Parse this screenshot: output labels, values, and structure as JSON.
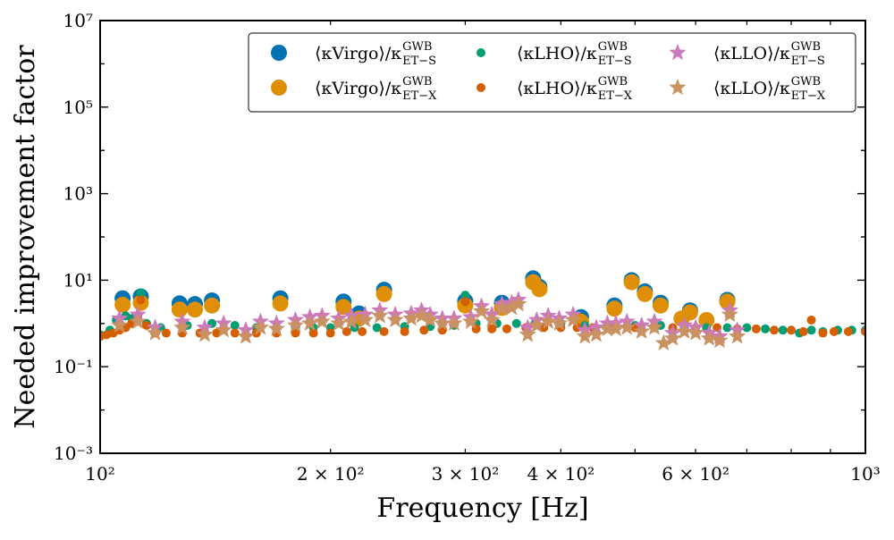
{
  "chart_data": {
    "type": "scatter",
    "xscale": "log",
    "yscale": "log",
    "xlim": [
      100,
      1000
    ],
    "ylim": [
      0.001,
      10000000
    ],
    "xlabel": "Frequency [Hz]",
    "ylabel": "Needed improvement factor",
    "x_ticks": [
      {
        "value": 100,
        "label": "10²",
        "major": true
      },
      {
        "value": 200,
        "label": "2 × 10²",
        "major": false
      },
      {
        "value": 300,
        "label": "3 × 10²",
        "major": false
      },
      {
        "value": 400,
        "label": "4 × 10²",
        "major": false
      },
      {
        "value": 500,
        "label": "",
        "major": false
      },
      {
        "value": 600,
        "label": "6 × 10²",
        "major": false
      },
      {
        "value": 700,
        "label": "",
        "major": false
      },
      {
        "value": 800,
        "label": "",
        "major": false
      },
      {
        "value": 900,
        "label": "",
        "major": false
      },
      {
        "value": 1000,
        "label": "10³",
        "major": true
      }
    ],
    "y_ticks": [
      {
        "value": 0.001,
        "label": "10⁻³"
      },
      {
        "value": 0.1,
        "label": "10⁻¹"
      },
      {
        "value": 10,
        "label": "10¹"
      },
      {
        "value": 1000,
        "label": "10³"
      },
      {
        "value": 100000,
        "label": "10⁵"
      },
      {
        "value": 10000000,
        "label": "10⁷"
      }
    ],
    "legend": {
      "placement": "top-right",
      "columns": 3
    },
    "series": [
      {
        "name": "⟨κ_Virgo⟩/κ^GWB_ET−S",
        "legend_main": "⟨κVirgo⟩/κ",
        "legend_sup": "GWB",
        "legend_sub": "ET−S",
        "color": "#0173b2",
        "marker": "circle",
        "size": "large",
        "points": [
          [
            107,
            3.8
          ],
          [
            113,
            4.2
          ],
          [
            127,
            2.9
          ],
          [
            133,
            2.8
          ],
          [
            140,
            3.4
          ],
          [
            172,
            3.8
          ],
          [
            208,
            3.2
          ],
          [
            218,
            1.7
          ],
          [
            235,
            6.0
          ],
          [
            300,
            3.3
          ],
          [
            335,
            3.0
          ],
          [
            368,
            11.0
          ],
          [
            375,
            7.0
          ],
          [
            425,
            1.4
          ],
          [
            470,
            2.6
          ],
          [
            495,
            10.0
          ],
          [
            515,
            5.5
          ],
          [
            540,
            3.0
          ],
          [
            590,
            2.0
          ],
          [
            660,
            3.5
          ]
        ]
      },
      {
        "name": "⟨κ_Virgo⟩/κ^GWB_ET−X",
        "legend_main": "⟨κVirgo⟩/κ",
        "legend_sup": "GWB",
        "legend_sub": "ET−X",
        "color": "#de8f05",
        "marker": "circle",
        "size": "large",
        "points": [
          [
            107,
            2.7
          ],
          [
            113,
            3.0
          ],
          [
            127,
            2.1
          ],
          [
            133,
            2.1
          ],
          [
            140,
            2.6
          ],
          [
            172,
            2.9
          ],
          [
            208,
            2.4
          ],
          [
            218,
            1.3
          ],
          [
            235,
            4.8
          ],
          [
            300,
            2.6
          ],
          [
            335,
            2.3
          ],
          [
            368,
            9.0
          ],
          [
            375,
            6.2
          ],
          [
            425,
            1.1
          ],
          [
            470,
            2.2
          ],
          [
            495,
            9.0
          ],
          [
            515,
            4.8
          ],
          [
            540,
            2.6
          ],
          [
            575,
            1.3
          ],
          [
            590,
            1.8
          ],
          [
            620,
            1.2
          ],
          [
            660,
            3.2
          ]
        ]
      },
      {
        "name": "⟨κ_LHO⟩/κ^GWB_ET−S",
        "legend_main": "⟨κLHO⟩/κ",
        "legend_sup": "GWB",
        "legend_sub": "ET−S",
        "color": "#029e73",
        "marker": "circle",
        "size": "small",
        "points": [
          [
            100,
            0.55
          ],
          [
            103,
            0.7
          ],
          [
            105,
            1.2
          ],
          [
            108,
            1.5
          ],
          [
            110,
            1.3
          ],
          [
            113,
            5.0
          ],
          [
            115,
            1.0
          ],
          [
            120,
            0.8
          ],
          [
            130,
            0.9
          ],
          [
            140,
            1.0
          ],
          [
            150,
            0.9
          ],
          [
            160,
            0.8
          ],
          [
            170,
            0.8
          ],
          [
            180,
            0.8
          ],
          [
            190,
            0.8
          ],
          [
            200,
            0.8
          ],
          [
            215,
            0.8
          ],
          [
            230,
            0.8
          ],
          [
            250,
            0.85
          ],
          [
            270,
            0.85
          ],
          [
            290,
            0.9
          ],
          [
            300,
            4.5
          ],
          [
            310,
            1.0
          ],
          [
            330,
            1.0
          ],
          [
            350,
            1.0
          ],
          [
            370,
            1.0
          ],
          [
            400,
            1.0
          ],
          [
            430,
            0.9
          ],
          [
            460,
            0.9
          ],
          [
            500,
            0.9
          ],
          [
            540,
            0.9
          ],
          [
            580,
            0.8
          ],
          [
            620,
            0.8
          ],
          [
            660,
            0.8
          ],
          [
            700,
            0.8
          ],
          [
            740,
            0.75
          ],
          [
            780,
            0.7
          ],
          [
            820,
            0.6
          ],
          [
            850,
            0.7
          ],
          [
            880,
            0.65
          ],
          [
            920,
            0.7
          ],
          [
            960,
            0.7
          ],
          [
            1000,
            0.7
          ]
        ]
      },
      {
        "name": "⟨κ_LHO⟩/κ^GWB_ET−X",
        "legend_main": "⟨κLHO⟩/κ",
        "legend_sup": "GWB",
        "legend_sub": "ET−X",
        "color": "#d55e00",
        "marker": "circle",
        "size": "small",
        "points": [
          [
            100,
            0.5
          ],
          [
            102,
            0.55
          ],
          [
            104,
            0.6
          ],
          [
            106,
            0.7
          ],
          [
            108,
            0.8
          ],
          [
            110,
            1.0
          ],
          [
            112,
            1.4
          ],
          [
            113,
            3.5
          ],
          [
            115,
            0.9
          ],
          [
            118,
            0.6
          ],
          [
            122,
            0.6
          ],
          [
            128,
            0.6
          ],
          [
            135,
            0.6
          ],
          [
            142,
            0.6
          ],
          [
            150,
            0.6
          ],
          [
            160,
            0.6
          ],
          [
            170,
            0.6
          ],
          [
            180,
            0.6
          ],
          [
            190,
            0.6
          ],
          [
            200,
            0.6
          ],
          [
            210,
            0.65
          ],
          [
            220,
            0.65
          ],
          [
            235,
            0.65
          ],
          [
            250,
            0.65
          ],
          [
            265,
            0.7
          ],
          [
            280,
            0.7
          ],
          [
            300,
            3.2
          ],
          [
            310,
            0.75
          ],
          [
            325,
            0.75
          ],
          [
            340,
            0.75
          ],
          [
            360,
            0.8
          ],
          [
            380,
            0.8
          ],
          [
            400,
            0.8
          ],
          [
            420,
            0.8
          ],
          [
            440,
            0.8
          ],
          [
            470,
            0.8
          ],
          [
            500,
            0.8
          ],
          [
            530,
            0.8
          ],
          [
            560,
            0.8
          ],
          [
            600,
            0.8
          ],
          [
            640,
            0.8
          ],
          [
            680,
            0.75
          ],
          [
            720,
            0.75
          ],
          [
            760,
            0.7
          ],
          [
            800,
            0.7
          ],
          [
            830,
            0.65
          ],
          [
            850,
            1.2
          ],
          [
            880,
            0.6
          ],
          [
            910,
            0.65
          ],
          [
            950,
            0.65
          ],
          [
            1000,
            0.65
          ]
        ]
      },
      {
        "name": "⟨κ_LLO⟩/κ^GWB_ET−S",
        "legend_main": "⟨κLLO⟩/κ",
        "legend_sup": "GWB",
        "legend_sub": "ET−S",
        "color": "#cc78bc",
        "marker": "star",
        "size": "large",
        "points": [
          [
            106,
            1.3
          ],
          [
            112,
            1.6
          ],
          [
            118,
            0.8
          ],
          [
            128,
            1.1
          ],
          [
            137,
            0.8
          ],
          [
            145,
            1.0
          ],
          [
            155,
            0.7
          ],
          [
            162,
            1.1
          ],
          [
            170,
            1.0
          ],
          [
            180,
            1.2
          ],
          [
            188,
            1.4
          ],
          [
            195,
            1.5
          ],
          [
            205,
            1.3
          ],
          [
            213,
            1.5
          ],
          [
            222,
            1.6
          ],
          [
            232,
            2.0
          ],
          [
            243,
            1.6
          ],
          [
            255,
            1.7
          ],
          [
            263,
            2.0
          ],
          [
            270,
            1.6
          ],
          [
            280,
            1.3
          ],
          [
            290,
            1.3
          ],
          [
            305,
            1.4
          ],
          [
            315,
            2.5
          ],
          [
            325,
            1.6
          ],
          [
            335,
            2.8
          ],
          [
            345,
            3.0
          ],
          [
            352,
            3.5
          ],
          [
            362,
            0.8
          ],
          [
            372,
            1.2
          ],
          [
            385,
            1.5
          ],
          [
            398,
            1.3
          ],
          [
            415,
            1.6
          ],
          [
            430,
            0.7
          ],
          [
            445,
            0.8
          ],
          [
            460,
            1.0
          ],
          [
            472,
            1.0
          ],
          [
            488,
            1.1
          ],
          [
            510,
            0.9
          ],
          [
            530,
            1.1
          ],
          [
            560,
            0.6
          ],
          [
            580,
            0.9
          ],
          [
            600,
            0.8
          ],
          [
            625,
            0.6
          ],
          [
            645,
            0.5
          ],
          [
            665,
            2.0
          ],
          [
            680,
            0.7
          ]
        ]
      },
      {
        "name": "⟨κ_LLO⟩/κ^GWB_ET−X",
        "legend_main": "⟨κLLO⟩/κ",
        "legend_sup": "GWB",
        "legend_sub": "ET−X",
        "color": "#ca9161",
        "marker": "star",
        "size": "large",
        "points": [
          [
            106,
            0.9
          ],
          [
            112,
            1.1
          ],
          [
            118,
            0.6
          ],
          [
            128,
            0.8
          ],
          [
            137,
            0.55
          ],
          [
            145,
            0.7
          ],
          [
            155,
            0.5
          ],
          [
            162,
            0.8
          ],
          [
            170,
            0.75
          ],
          [
            180,
            0.9
          ],
          [
            188,
            1.0
          ],
          [
            195,
            1.1
          ],
          [
            205,
            1.0
          ],
          [
            213,
            1.1
          ],
          [
            222,
            1.2
          ],
          [
            232,
            1.5
          ],
          [
            243,
            1.2
          ],
          [
            255,
            1.3
          ],
          [
            263,
            1.5
          ],
          [
            270,
            1.2
          ],
          [
            280,
            1.0
          ],
          [
            290,
            1.0
          ],
          [
            305,
            1.1
          ],
          [
            315,
            1.9
          ],
          [
            325,
            1.2
          ],
          [
            335,
            2.2
          ],
          [
            345,
            2.3
          ],
          [
            352,
            2.8
          ],
          [
            362,
            0.55
          ],
          [
            372,
            0.9
          ],
          [
            385,
            1.1
          ],
          [
            398,
            1.0
          ],
          [
            415,
            1.2
          ],
          [
            430,
            0.5
          ],
          [
            445,
            0.55
          ],
          [
            460,
            0.75
          ],
          [
            472,
            0.75
          ],
          [
            488,
            0.8
          ],
          [
            510,
            0.65
          ],
          [
            530,
            0.8
          ],
          [
            545,
            0.35
          ],
          [
            560,
            0.45
          ],
          [
            580,
            0.65
          ],
          [
            600,
            0.6
          ],
          [
            625,
            0.45
          ],
          [
            645,
            0.4
          ],
          [
            665,
            1.6
          ],
          [
            680,
            0.5
          ]
        ]
      }
    ]
  }
}
